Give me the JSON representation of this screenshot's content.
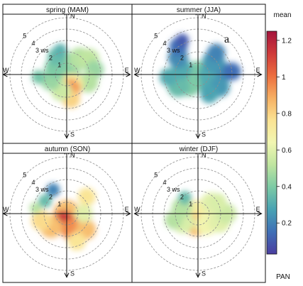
{
  "annotation": "a",
  "chart_data": {
    "type": "heatmap",
    "subtype": "polar-plot",
    "colorbar": {
      "title": "mean",
      "bottom_label": "PAN",
      "ticks": [
        0.2,
        0.4,
        0.6,
        0.8,
        1.0,
        1.2
      ],
      "tick_labels": [
        "0.2",
        "0.4",
        "0.6",
        "0.8",
        "1",
        "1.2"
      ],
      "range": [
        0.03,
        1.25
      ],
      "palette": [
        "#4a3ea0",
        "#3f6fb6",
        "#48a2b3",
        "#7ccaa5",
        "#bfe5a0",
        "#f1f6b1",
        "#fbe393",
        "#f6b063",
        "#ec6e3f",
        "#cf3a3a",
        "#a4143c"
      ]
    },
    "radial_axis": {
      "unit": "ws",
      "rings": [
        1,
        2,
        3,
        4,
        5
      ],
      "ring_labels": [
        "1",
        "2",
        "3 ws",
        "4",
        "5"
      ],
      "range": [
        0,
        5
      ]
    },
    "directions": [
      "N",
      "E",
      "S",
      "W"
    ],
    "panels": [
      {
        "title": "spring (MAM)",
        "blobs": [
          {
            "ws": 0.0,
            "dir": 0,
            "r": 1.2,
            "value": 0.45
          },
          {
            "ws": 1.0,
            "dir": 20,
            "r": 1.0,
            "value": 0.42
          },
          {
            "ws": 1.8,
            "dir": 40,
            "r": 1.0,
            "value": 0.5
          },
          {
            "ws": 2.4,
            "dir": 55,
            "r": 0.9,
            "value": 0.52
          },
          {
            "ws": 2.5,
            "dir": 80,
            "r": 0.8,
            "value": 0.45
          },
          {
            "ws": 2.0,
            "dir": 110,
            "r": 0.9,
            "value": 0.5
          },
          {
            "ws": 1.0,
            "dir": 150,
            "r": 1.0,
            "value": 0.7
          },
          {
            "ws": 1.3,
            "dir": 165,
            "r": 0.9,
            "value": 0.92
          },
          {
            "ws": 2.2,
            "dir": 170,
            "r": 0.8,
            "value": 0.8
          },
          {
            "ws": 1.5,
            "dir": 200,
            "r": 0.9,
            "value": 0.55
          },
          {
            "ws": 1.5,
            "dir": 250,
            "r": 0.9,
            "value": 0.45
          },
          {
            "ws": 2.5,
            "dir": 265,
            "r": 0.6,
            "value": 0.38
          },
          {
            "ws": 1.2,
            "dir": 300,
            "r": 0.9,
            "value": 0.4
          },
          {
            "ws": 1.8,
            "dir": 330,
            "r": 0.8,
            "value": 0.35
          },
          {
            "ws": 2.2,
            "dir": 345,
            "r": 0.6,
            "value": 0.32
          }
        ]
      },
      {
        "title": "summer (JJA)",
        "blobs": [
          {
            "ws": 0.0,
            "dir": 0,
            "r": 1.2,
            "value": 0.4
          },
          {
            "ws": 1.0,
            "dir": 90,
            "r": 1.0,
            "value": 0.3
          },
          {
            "ws": 2.0,
            "dir": 85,
            "r": 1.0,
            "value": 0.22
          },
          {
            "ws": 3.0,
            "dir": 85,
            "r": 0.8,
            "value": 0.15
          },
          {
            "ws": 1.8,
            "dir": 50,
            "r": 1.0,
            "value": 0.25
          },
          {
            "ws": 2.5,
            "dir": 40,
            "r": 0.8,
            "value": 0.2
          },
          {
            "ws": 1.2,
            "dir": 130,
            "r": 1.0,
            "value": 0.3
          },
          {
            "ws": 2.2,
            "dir": 120,
            "r": 0.9,
            "value": 0.25
          },
          {
            "ws": 2.0,
            "dir": 150,
            "r": 0.8,
            "value": 0.28
          },
          {
            "ws": 1.2,
            "dir": 220,
            "r": 1.0,
            "value": 0.4
          },
          {
            "ws": 2.0,
            "dir": 240,
            "r": 1.0,
            "value": 0.35
          },
          {
            "ws": 2.6,
            "dir": 265,
            "r": 0.8,
            "value": 0.3
          },
          {
            "ws": 1.5,
            "dir": 290,
            "r": 0.9,
            "value": 0.3
          },
          {
            "ws": 2.3,
            "dir": 310,
            "r": 0.9,
            "value": 0.22
          },
          {
            "ws": 3.0,
            "dir": 325,
            "r": 0.8,
            "value": 0.15
          },
          {
            "ws": 3.3,
            "dir": 335,
            "r": 0.6,
            "value": 0.1
          }
        ]
      },
      {
        "title": "autumn (SON)",
        "blobs": [
          {
            "ws": 0.0,
            "dir": 0,
            "r": 1.2,
            "value": 0.85
          },
          {
            "ws": 0.8,
            "dir": 200,
            "r": 1.0,
            "value": 1.15
          },
          {
            "ws": 1.5,
            "dir": 160,
            "r": 1.0,
            "value": 0.95
          },
          {
            "ws": 2.2,
            "dir": 130,
            "r": 0.9,
            "value": 0.85
          },
          {
            "ws": 2.6,
            "dir": 160,
            "r": 0.8,
            "value": 0.75
          },
          {
            "ws": 1.8,
            "dir": 230,
            "r": 1.0,
            "value": 0.85
          },
          {
            "ws": 2.3,
            "dir": 255,
            "r": 0.9,
            "value": 0.78
          },
          {
            "ws": 2.3,
            "dir": 50,
            "r": 0.8,
            "value": 0.75
          },
          {
            "ws": 1.5,
            "dir": 90,
            "r": 0.8,
            "value": 0.6
          },
          {
            "ws": 2.4,
            "dir": 330,
            "r": 0.6,
            "value": 0.2
          },
          {
            "ws": 2.2,
            "dir": 300,
            "r": 0.6,
            "value": 0.35
          },
          {
            "ws": 2.8,
            "dir": 280,
            "r": 0.5,
            "value": 0.5
          }
        ]
      },
      {
        "title": "winter (DJF)",
        "blobs": [
          {
            "ws": 0.0,
            "dir": 0,
            "r": 1.2,
            "value": 0.7
          },
          {
            "ws": 1.0,
            "dir": 190,
            "r": 1.0,
            "value": 0.85
          },
          {
            "ws": 1.2,
            "dir": 140,
            "r": 1.0,
            "value": 0.65
          },
          {
            "ws": 2.0,
            "dir": 110,
            "r": 1.0,
            "value": 0.6
          },
          {
            "ws": 2.5,
            "dir": 90,
            "r": 0.9,
            "value": 0.55
          },
          {
            "ws": 1.5,
            "dir": 50,
            "r": 0.9,
            "value": 0.6
          },
          {
            "ws": 2.0,
            "dir": 60,
            "r": 0.8,
            "value": 0.58
          },
          {
            "ws": 1.5,
            "dir": 240,
            "r": 1.0,
            "value": 0.58
          },
          {
            "ws": 2.2,
            "dir": 255,
            "r": 0.8,
            "value": 0.5
          },
          {
            "ws": 1.5,
            "dir": 290,
            "r": 0.9,
            "value": 0.5
          },
          {
            "ws": 1.8,
            "dir": 320,
            "r": 0.6,
            "value": 0.35
          }
        ]
      }
    ]
  }
}
